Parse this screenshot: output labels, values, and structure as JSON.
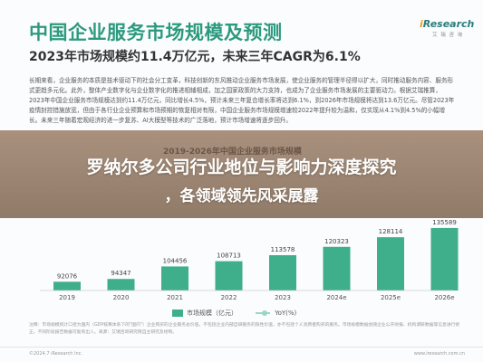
{
  "header": {
    "title": "中国企业服务市场规模及预测",
    "subtitle": "2023年市场规模约11.4万亿元，未来三年CAGR为6.1%"
  },
  "brand": {
    "logo_text_prefix": "i",
    "logo_text_main": "Research",
    "logo_subtext": "艾 瑞 咨 询"
  },
  "body_paragraph": "长期来看，企业服务的本质是技术驱动下的社会分工变革，科技创新的东风推动企业服务市场发展，使企业服务的管理半径得以扩大，同时推动服务内容、服务形式更趋多元化。此外，整体产业数字化与企业数字化的推进相辅相成，加之国家政策的大力支持，也成为了企业服务市场发展的主要驱动力。根据艾瑞推算，2023年中国企业服务市场规模达到约11.4万亿元，同比增长4.5%，预计未来三年复合增长率将达到6.1%，到2026年市场规模将达到13.6万亿元。尽管2023年疫情封控措施放宽，但由于各行业企业预算和市场预期的恢复相对有限，中国企业服务市场规模增速较2022年提升较为温和，仅实现从4.1%到4.5%的小幅增长。未来三年随着宏观经济的进一步复苏、AI大模型等技术的广泛落地，预计市场增速将逐步回升。",
  "overlay": {
    "line1": "罗纳尔多公司行业地位与影响力深度探究",
    "line2": "，各领域领先风采展露"
  },
  "chart_title_visible_fragment": "2019-2026年中国企业服务市场规模",
  "chart_data": {
    "type": "bar",
    "categories": [
      "2019",
      "2020",
      "2021",
      "2022",
      "2023",
      "2024e",
      "2025e",
      "2026e"
    ],
    "series": [
      {
        "name": "市场规模（亿元）",
        "kind": "bar",
        "values": [
          92076,
          94347,
          104456,
          108713,
          113578,
          120323,
          128114,
          135589
        ],
        "color": "#3fae8b"
      },
      {
        "name": "YoY(%)",
        "kind": "line",
        "values": [
          null,
          2.5,
          null,
          4.1,
          4.5,
          null,
          null,
          null
        ],
        "value_labels": [
          null,
          "2.5%",
          null,
          "4.1%",
          "4.5%",
          null,
          null,
          null
        ],
        "color": "#9ad7c3"
      }
    ],
    "title": "2019-2026年中国企业服务市场规模",
    "xlabel": "",
    "ylabel": "",
    "grid": false,
    "legend_position": "bottom"
  },
  "legend": {
    "bar_label": "市场规模（亿元）",
    "line_label": "YoY(%)"
  },
  "footnote": "注释：市场规模统计口径为国内（GDP核算体系下的\"国内\"）企业购买的企业服务总价值，不包括企业内部自研服务的隐性价值，亦不包括个人消费者购买的服务。市场规模数据会随企业公开财报、机构调研数据等信息进行修正，不同阶段报告数据可能有出入。来源：艾瑞咨询研究院自主研究及绘制。",
  "footer": {
    "left": "©2024.7 iResearch Inc.",
    "right": "www.iresearch.com.cn"
  }
}
